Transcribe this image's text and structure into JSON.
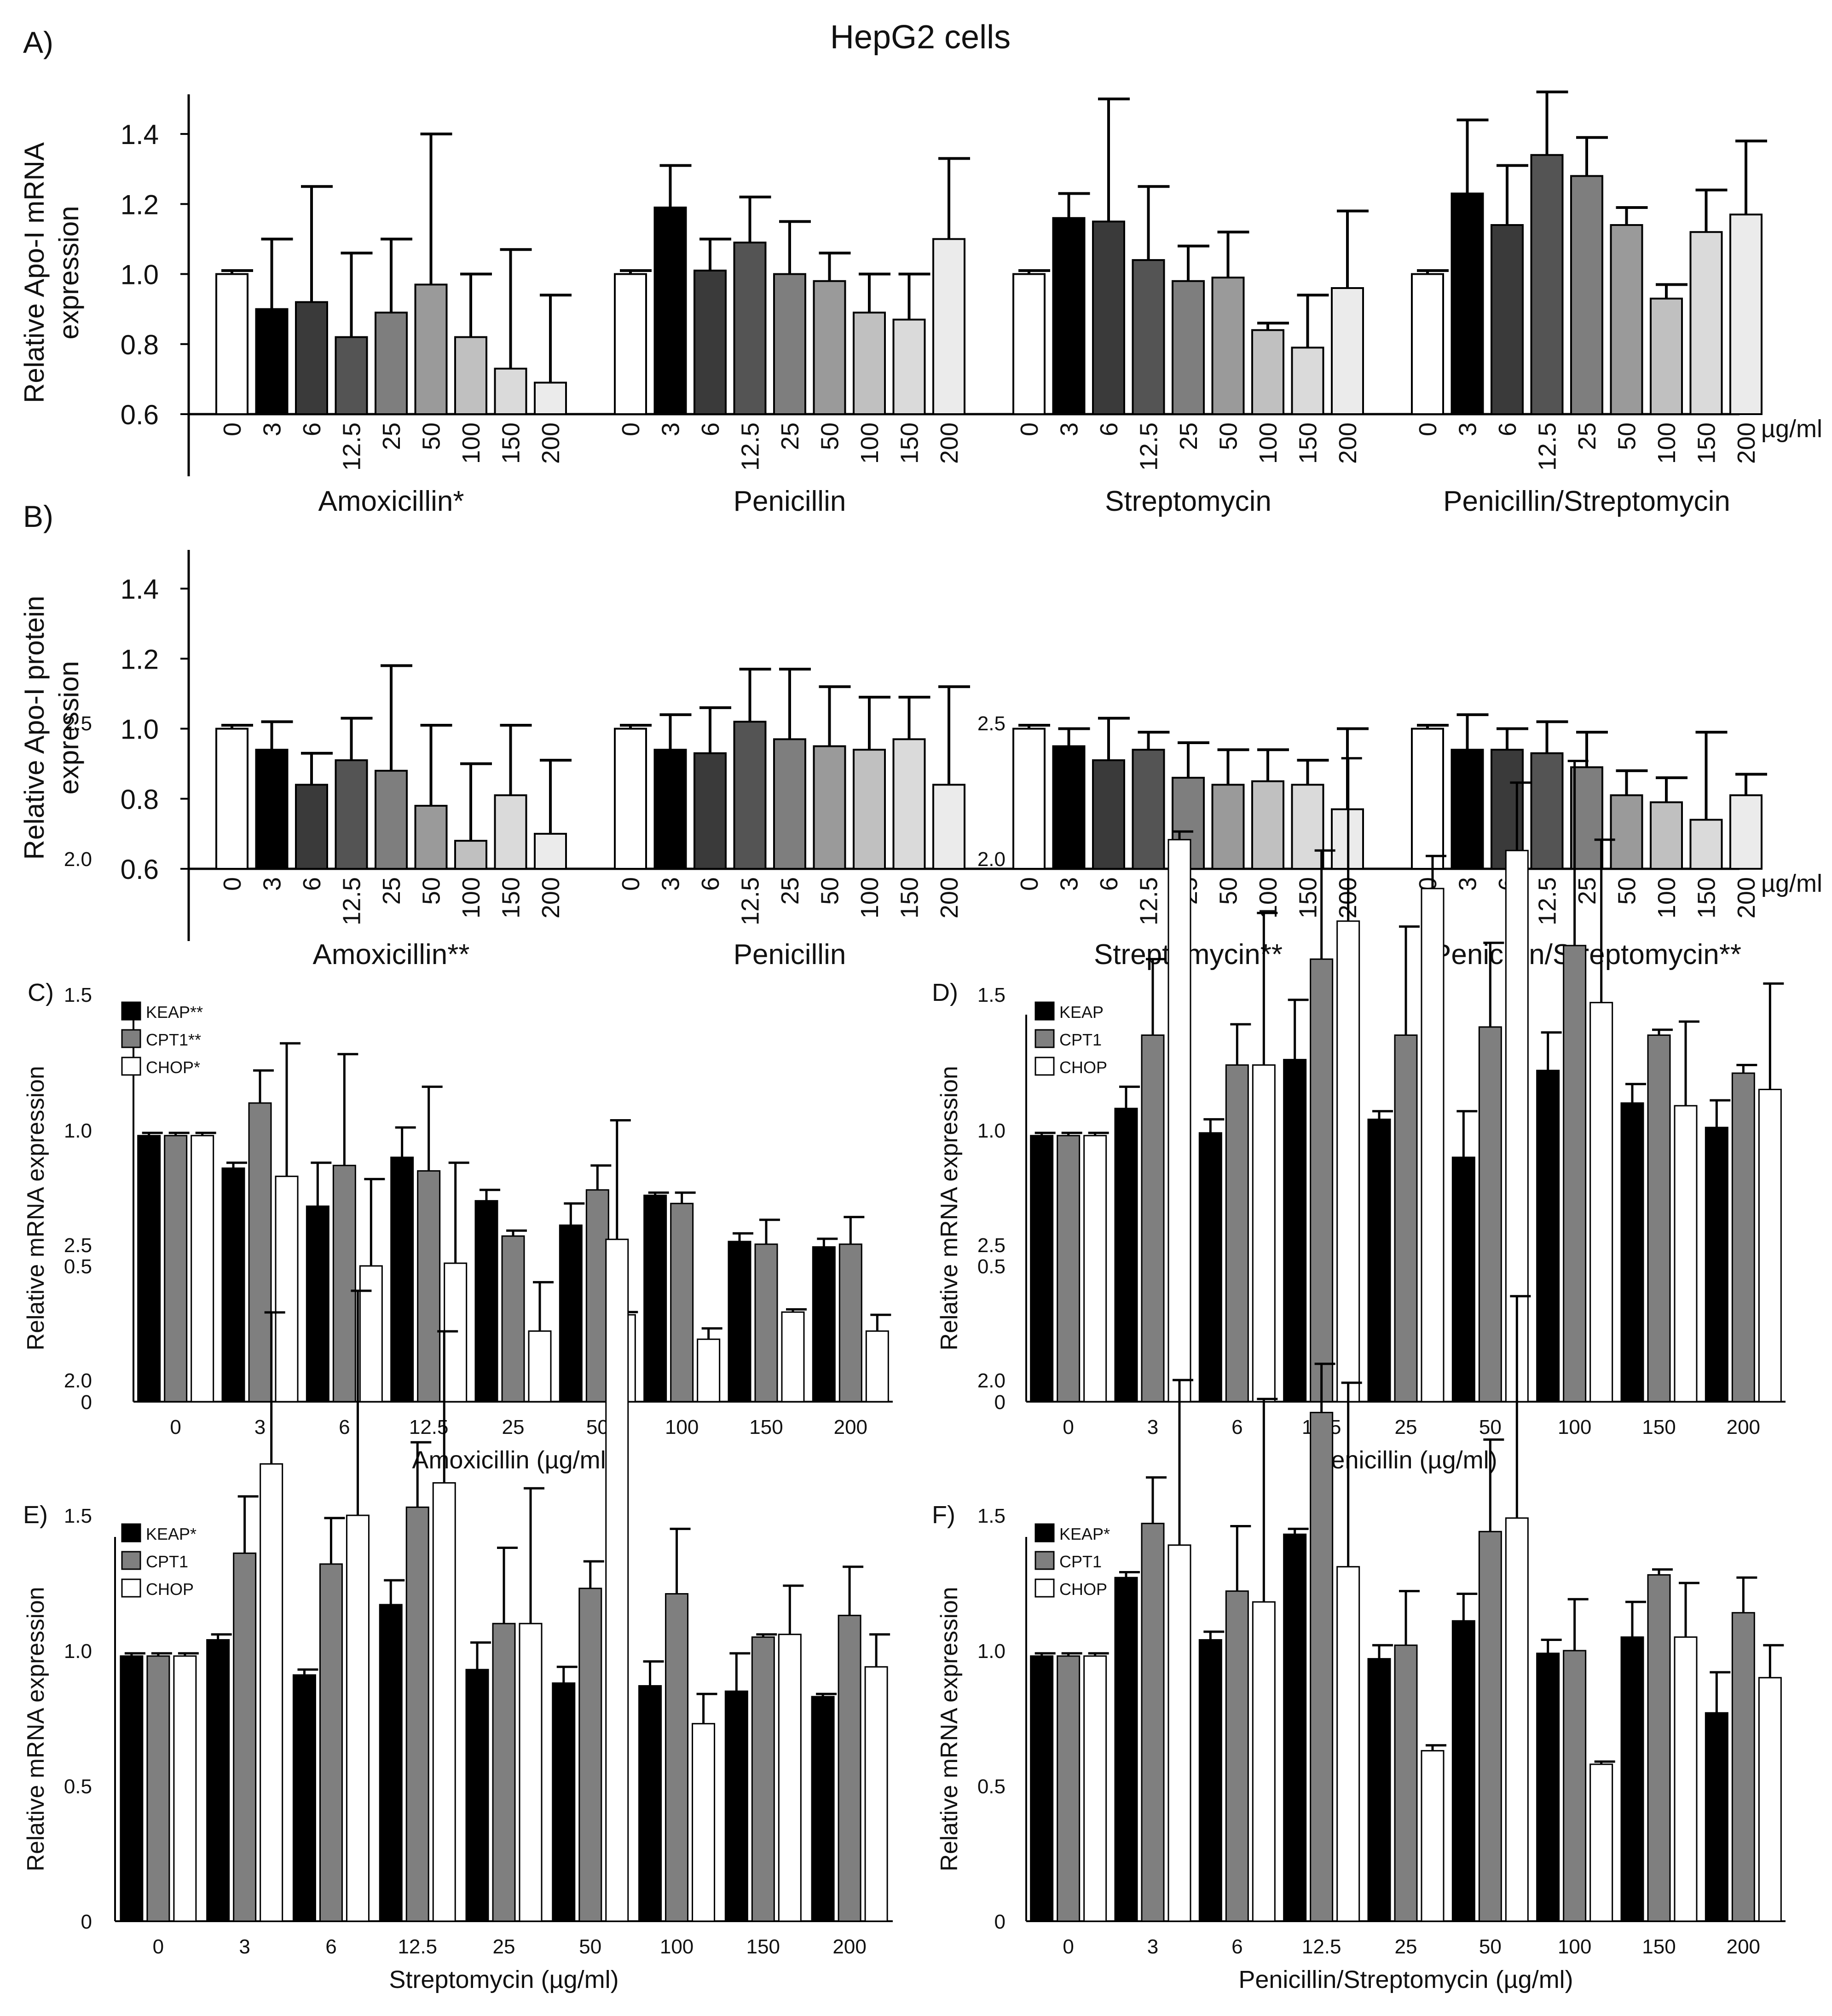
{
  "figure_title": "HepG2 cells",
  "colors": {
    "conc_fills": [
      "#ffffff",
      "#000000",
      "#3a3a3a",
      "#545454",
      "#7e7e7e",
      "#9a9a9a",
      "#c0c0c0",
      "#dadada",
      "#ebebeb"
    ],
    "keap": "#000000",
    "cpt1": "#7f7f7f",
    "chop": "#ffffff",
    "stroke": "#000000"
  },
  "chart_data": [
    {
      "id": "A",
      "panel_label": "A)",
      "type": "bar",
      "ylabel": "Relative Apo-I mRNA expression",
      "ylabel_lines": [
        "Relative Apo-I mRNA",
        "expression"
      ],
      "ylim": [
        0.6,
        1.5
      ],
      "yticks": [
        "0.6",
        "0.8",
        "1.0",
        "1.2",
        "1.4"
      ],
      "unit_label": "µg/ml",
      "categories": [
        "0",
        "3",
        "6",
        "12.5",
        "25",
        "50",
        "100",
        "150",
        "200"
      ],
      "groups": [
        {
          "name": "Amoxicillin*",
          "values": [
            1.0,
            0.9,
            0.92,
            0.82,
            0.89,
            0.97,
            0.82,
            0.73,
            0.69
          ],
          "errors": [
            0.01,
            0.2,
            0.33,
            0.24,
            0.21,
            0.43,
            0.18,
            0.34,
            0.25
          ]
        },
        {
          "name": "Penicillin",
          "values": [
            1.0,
            1.19,
            1.01,
            1.09,
            1.0,
            0.98,
            0.89,
            0.87,
            1.1
          ],
          "errors": [
            0.01,
            0.12,
            0.09,
            0.13,
            0.15,
            0.08,
            0.11,
            0.13,
            0.23
          ]
        },
        {
          "name": "Streptomycin",
          "values": [
            1.0,
            1.16,
            1.15,
            1.04,
            0.98,
            0.99,
            0.84,
            0.79,
            0.96
          ],
          "errors": [
            0.01,
            0.07,
            0.35,
            0.21,
            0.1,
            0.13,
            0.02,
            0.15,
            0.22
          ]
        },
        {
          "name": "Penicillin/Streptomycin",
          "values": [
            1.0,
            1.23,
            1.14,
            1.34,
            1.28,
            1.14,
            0.93,
            1.12,
            1.17
          ],
          "errors": [
            0.01,
            0.21,
            0.17,
            0.18,
            0.11,
            0.05,
            0.04,
            0.12,
            0.21
          ]
        }
      ]
    },
    {
      "id": "B",
      "panel_label": "B)",
      "type": "bar",
      "ylabel": "Relative Apo-I protein expression",
      "ylabel_lines": [
        "Relative Apo-I protein",
        "expression"
      ],
      "ylim": [
        0.6,
        1.5
      ],
      "yticks": [
        "0.6",
        "0.8",
        "1.0",
        "1.2",
        "1.4"
      ],
      "unit_label": "µg/ml",
      "categories": [
        "0",
        "3",
        "6",
        "12.5",
        "25",
        "50",
        "100",
        "150",
        "200"
      ],
      "groups": [
        {
          "name": "Amoxicillin**",
          "values": [
            1.0,
            0.94,
            0.84,
            0.91,
            0.88,
            0.78,
            0.68,
            0.81,
            0.7
          ],
          "errors": [
            0.01,
            0.08,
            0.09,
            0.12,
            0.3,
            0.23,
            0.22,
            0.2,
            0.21
          ]
        },
        {
          "name": "Penicillin",
          "values": [
            1.0,
            0.94,
            0.93,
            1.02,
            0.97,
            0.95,
            0.94,
            0.97,
            0.84
          ],
          "errors": [
            0.01,
            0.1,
            0.13,
            0.15,
            0.2,
            0.17,
            0.15,
            0.12,
            0.28
          ]
        },
        {
          "name": "Streptomycin**",
          "values": [
            1.0,
            0.95,
            0.91,
            0.94,
            0.86,
            0.84,
            0.85,
            0.84,
            0.77
          ],
          "errors": [
            0.01,
            0.05,
            0.12,
            0.05,
            0.1,
            0.1,
            0.09,
            0.07,
            0.23
          ]
        },
        {
          "name": "Penicillin/Streptomycin**",
          "values": [
            1.0,
            0.94,
            0.94,
            0.93,
            0.89,
            0.81,
            0.79,
            0.74,
            0.81
          ],
          "errors": [
            0.01,
            0.1,
            0.06,
            0.09,
            0.1,
            0.07,
            0.07,
            0.25,
            0.06
          ]
        }
      ]
    },
    {
      "id": "C",
      "panel_label": "C)",
      "type": "bar",
      "ylabel": "Relative mRNA expression",
      "xlabel": "Amoxicillin (µg/ml)",
      "ylim": [
        0,
        2.8
      ],
      "yticks": [
        "0",
        "0.5",
        "1.0",
        "1.5",
        "2.0",
        "2.5"
      ],
      "categories": [
        "0",
        "3",
        "6",
        "12.5",
        "25",
        "50",
        "100",
        "150",
        "200"
      ],
      "legend": [
        "KEAP**",
        "CPT1**",
        "CHOP*"
      ],
      "series": [
        {
          "name": "KEAP",
          "values": [
            0.98,
            0.86,
            0.72,
            0.9,
            0.74,
            0.65,
            0.76,
            0.59,
            0.57
          ],
          "errors": [
            0.01,
            0.02,
            0.16,
            0.11,
            0.04,
            0.08,
            0.01,
            0.03,
            0.03
          ]
        },
        {
          "name": "CPT1",
          "values": [
            0.98,
            1.1,
            0.87,
            0.85,
            0.61,
            0.78,
            0.73,
            0.58,
            0.58
          ],
          "errors": [
            0.01,
            0.12,
            0.41,
            0.31,
            0.02,
            0.09,
            0.04,
            0.09,
            0.1
          ]
        },
        {
          "name": "CHOP",
          "values": [
            0.98,
            0.83,
            0.5,
            0.51,
            0.26,
            0.32,
            0.23,
            0.33,
            0.26
          ],
          "errors": [
            0.01,
            0.49,
            0.32,
            0.37,
            0.18,
            0.01,
            0.04,
            0.01,
            0.06
          ]
        }
      ]
    },
    {
      "id": "D",
      "panel_label": "D)",
      "type": "bar",
      "ylabel": "Relative mRNA expression",
      "xlabel": "Penicillin (µg/ml)",
      "ylim": [
        0,
        2.8
      ],
      "yticks": [
        "0",
        "0.5",
        "1.0",
        "1.5",
        "2.0",
        "2.5"
      ],
      "categories": [
        "0",
        "3",
        "6",
        "12.5",
        "25",
        "50",
        "100",
        "150",
        "200"
      ],
      "legend": [
        "KEAP",
        "CPT1",
        "CHOP"
      ],
      "series": [
        {
          "name": "KEAP",
          "values": [
            0.98,
            1.08,
            0.99,
            1.26,
            1.04,
            0.9,
            1.22,
            1.1,
            1.01
          ],
          "errors": [
            0.01,
            0.08,
            0.05,
            0.22,
            0.03,
            0.17,
            0.14,
            0.07,
            0.1
          ]
        },
        {
          "name": "CPT1",
          "values": [
            0.98,
            1.35,
            1.24,
            1.63,
            1.35,
            1.38,
            1.68,
            1.35,
            1.21
          ],
          "errors": [
            0.01,
            0.28,
            0.15,
            0.4,
            0.4,
            0.31,
            0.68,
            0.02,
            0.03
          ]
        },
        {
          "name": "CHOP",
          "values": [
            0.98,
            2.07,
            1.24,
            1.77,
            1.89,
            2.03,
            1.47,
            1.09,
            1.15
          ],
          "errors": [
            0.01,
            0.03,
            0.56,
            0.6,
            0.12,
            0.25,
            0.6,
            0.31,
            0.39
          ]
        }
      ]
    },
    {
      "id": "E",
      "panel_label": "E)",
      "type": "bar",
      "ylabel": "Relative mRNA expression",
      "xlabel": "Streptomycin (µg/ml)",
      "ylim": [
        0,
        2.8
      ],
      "yticks": [
        "0",
        "0.5",
        "1.0",
        "1.5",
        "2.0",
        "2.5"
      ],
      "categories": [
        "0",
        "3",
        "6",
        "12.5",
        "25",
        "50",
        "100",
        "150",
        "200"
      ],
      "legend": [
        "KEAP*",
        "CPT1",
        "CHOP"
      ],
      "series": [
        {
          "name": "KEAP",
          "values": [
            0.98,
            1.04,
            0.91,
            1.17,
            0.93,
            0.88,
            0.87,
            0.85,
            0.83
          ],
          "errors": [
            0.01,
            0.02,
            0.02,
            0.09,
            0.1,
            0.06,
            0.09,
            0.14,
            0.01
          ]
        },
        {
          "name": "CPT1",
          "values": [
            0.98,
            1.36,
            1.32,
            1.53,
            1.1,
            1.23,
            1.21,
            1.05,
            1.13
          ],
          "errors": [
            0.01,
            0.21,
            0.17,
            0.24,
            0.28,
            0.1,
            0.24,
            0.01,
            0.18
          ]
        },
        {
          "name": "CHOP",
          "values": [
            0.98,
            1.69,
            1.5,
            1.62,
            1.1,
            2.52,
            0.73,
            1.06,
            0.94
          ],
          "errors": [
            0.01,
            0.56,
            0.83,
            0.56,
            0.5,
            0.44,
            0.11,
            0.18,
            0.12
          ]
        }
      ]
    },
    {
      "id": "F",
      "panel_label": "F)",
      "type": "bar",
      "ylabel": "Relative mRNA expression",
      "xlabel": "Penicillin/Streptomycin (µg/ml)",
      "ylim": [
        0,
        2.8
      ],
      "yticks": [
        "0",
        "0.5",
        "1.0",
        "1.5",
        "2.0",
        "2.5"
      ],
      "categories": [
        "0",
        "3",
        "6",
        "12.5",
        "25",
        "50",
        "100",
        "150",
        "200"
      ],
      "legend": [
        "KEAP*",
        "CPT1",
        "CHOP"
      ],
      "series": [
        {
          "name": "KEAP",
          "values": [
            0.98,
            1.27,
            1.04,
            1.43,
            0.97,
            1.11,
            0.99,
            1.05,
            0.77
          ],
          "errors": [
            0.01,
            0.02,
            0.03,
            0.02,
            0.05,
            0.1,
            0.05,
            0.13,
            0.15
          ]
        },
        {
          "name": "CPT1",
          "values": [
            0.98,
            1.47,
            1.22,
            1.88,
            1.02,
            1.44,
            1.0,
            1.28,
            1.14
          ],
          "errors": [
            0.01,
            0.17,
            0.24,
            0.18,
            0.2,
            0.34,
            0.19,
            0.02,
            0.13
          ]
        },
        {
          "name": "CHOP",
          "values": [
            0.98,
            1.39,
            1.18,
            1.31,
            0.63,
            1.49,
            0.58,
            1.05,
            0.9
          ],
          "errors": [
            0.01,
            0.61,
            0.75,
            0.68,
            0.02,
            0.82,
            0.01,
            0.2,
            0.12
          ]
        }
      ]
    }
  ]
}
